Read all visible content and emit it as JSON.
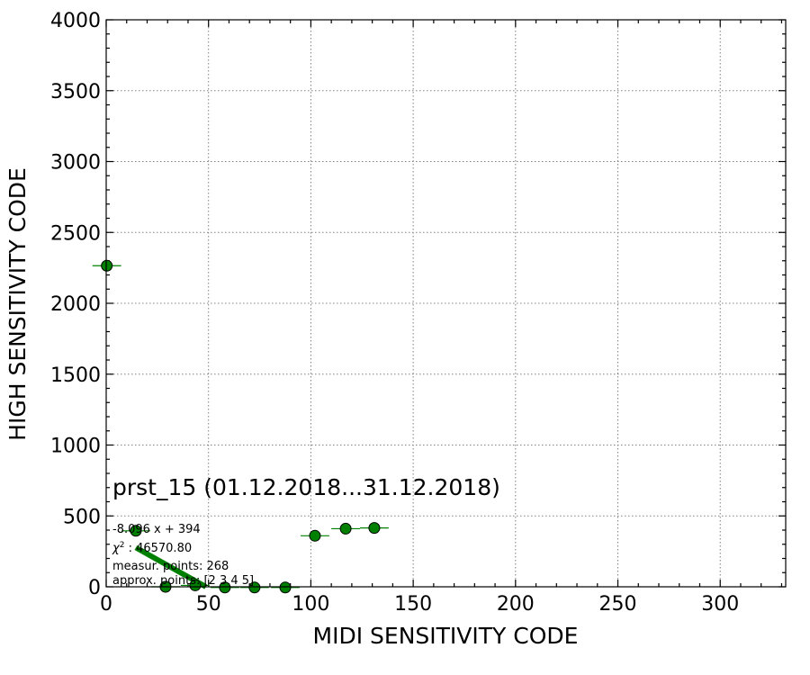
{
  "chart_data": {
    "type": "scatter",
    "xlabel": "MIDI SENSITIVITY CODE",
    "ylabel": "HIGH SENSITIVITY CODE",
    "xlim": [
      0,
      332
    ],
    "ylim": [
      0,
      4000
    ],
    "x_ticks": [
      0,
      50,
      100,
      150,
      200,
      250,
      300
    ],
    "y_ticks": [
      0,
      500,
      1000,
      1500,
      2000,
      2500,
      3000,
      3500,
      4000
    ],
    "grid": true,
    "annotation_title": "prst_15 (01.12.2018...31.12.2018)",
    "fit_equation": "-8.096 x + 394",
    "chi2_label": "χ",
    "chi2_sup": "2",
    "chi2_value": " : 46570.80",
    "measur_points": "measur. points: 268",
    "approx_points": "approx. points: [2 3 4 5]",
    "series": [
      {
        "marker_color": "#008000",
        "points": [
          {
            "x": 0.3,
            "y": 2265,
            "xerr": 7
          },
          {
            "x": 14.5,
            "y": 395,
            "xerr": 7
          },
          {
            "x": 29,
            "y": 0,
            "xerr": 7
          },
          {
            "x": 43.5,
            "y": 10,
            "xerr": 7
          },
          {
            "x": 58,
            "y": -5,
            "xerr": 7
          },
          {
            "x": 72.5,
            "y": -5,
            "xerr": 7
          },
          {
            "x": 87.5,
            "y": -5,
            "xerr": 7
          },
          {
            "x": 102,
            "y": 360,
            "xerr": 7
          },
          {
            "x": 117,
            "y": 410,
            "xerr": 7
          },
          {
            "x": 131,
            "y": 415,
            "xerr": 7
          }
        ]
      }
    ],
    "fit_line": {
      "slope": -8.096,
      "intercept": 394,
      "x_from": 14.5,
      "x_to": 48.7,
      "color": "#008000"
    }
  }
}
